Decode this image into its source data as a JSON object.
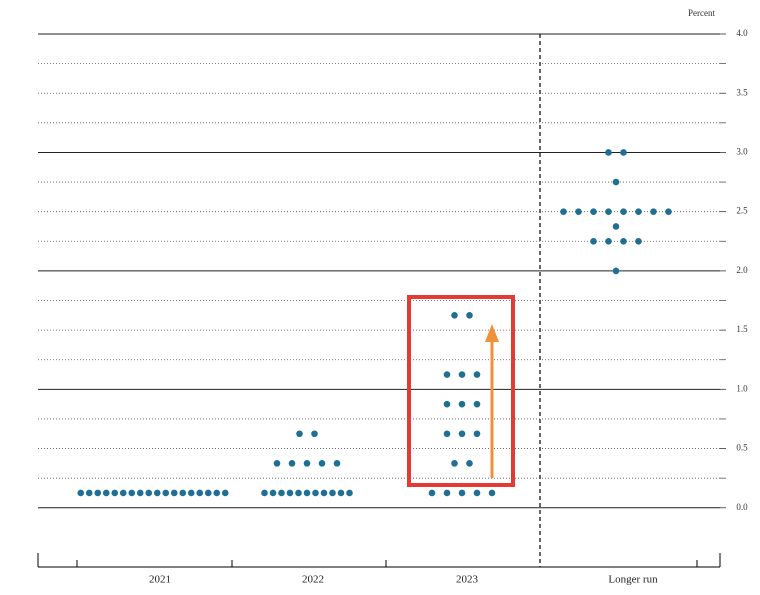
{
  "chart_data": {
    "type": "dotplot",
    "y_label": "Percent",
    "categories": [
      "2021",
      "2022",
      "2023",
      "Longer run"
    ],
    "color": "#1f6f95",
    "values": [
      [
        0.125,
        0.125,
        0.125,
        0.125,
        0.125,
        0.125,
        0.125,
        0.125,
        0.125,
        0.125,
        0.125,
        0.125,
        0.125,
        0.125,
        0.125,
        0.125,
        0.125,
        0.125
      ],
      [
        0.125,
        0.125,
        0.125,
        0.125,
        0.125,
        0.125,
        0.125,
        0.125,
        0.125,
        0.125,
        0.125,
        0.375,
        0.375,
        0.375,
        0.375,
        0.375,
        0.625,
        0.625
      ],
      [
        0.125,
        0.125,
        0.125,
        0.125,
        0.125,
        0.375,
        0.375,
        0.625,
        0.625,
        0.625,
        0.875,
        0.875,
        0.875,
        1.125,
        1.125,
        1.125,
        1.625,
        1.625
      ],
      [
        2.0,
        2.25,
        2.25,
        2.25,
        2.25,
        2.375,
        2.5,
        2.5,
        2.5,
        2.5,
        2.5,
        2.5,
        2.5,
        2.5,
        2.75,
        3.0,
        3.0
      ]
    ],
    "ylim": [
      -0.5,
      4.0
    ],
    "yticks": [
      {
        "value": 0,
        "label": "0.0"
      },
      0.5,
      {
        "value": 1,
        "label": "1.0"
      },
      1.5,
      {
        "value": 2,
        "label": "2.0"
      },
      2.5,
      {
        "value": 3,
        "label": "3.0"
      },
      3.5,
      {
        "value": 4,
        "label": "4.0"
      }
    ],
    "minor_yticks": [
      0.25,
      0.75,
      1.25,
      1.75,
      2.25,
      2.75,
      3.25,
      3.75
    ],
    "grid": true
  }
}
